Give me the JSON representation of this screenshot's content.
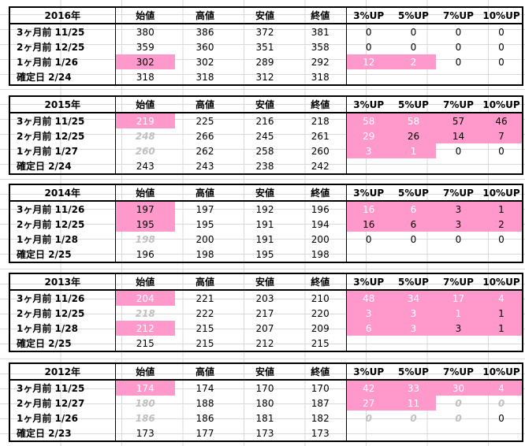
{
  "headers": {
    "cols": [
      "始値",
      "高値",
      "安値",
      "終値",
      "3%UP",
      "5%UP",
      "7%UP",
      "10%UP"
    ]
  },
  "colors": {
    "highlight": "#ff99cc",
    "muted_text": "#c0c0c0"
  },
  "blocks": [
    {
      "year": "2016年",
      "rows": [
        {
          "label": "3ヶ月前 11/25",
          "open": "380",
          "high": "386",
          "low": "372",
          "close": "381",
          "up3": "0",
          "up5": "0",
          "up7": "0",
          "up10": "0"
        },
        {
          "label": "2ヶ月前 12/25",
          "open": "359",
          "high": "360",
          "low": "351",
          "close": "358",
          "up3": "0",
          "up5": "0",
          "up7": "0",
          "up10": "0"
        },
        {
          "label": "1ヶ月前 1/26",
          "open": "302",
          "high": "302",
          "low": "289",
          "close": "292",
          "up3": "12",
          "up5": "2",
          "up7": "0",
          "up10": "0"
        },
        {
          "label": "確定日 2/24",
          "open": "318",
          "high": "318",
          "low": "312",
          "close": "318",
          "up3": "",
          "up5": "",
          "up7": "",
          "up10": ""
        }
      ]
    },
    {
      "year": "2015年",
      "rows": [
        {
          "label": "3ヶ月前 11/25",
          "open": "219",
          "high": "225",
          "low": "216",
          "close": "218",
          "up3": "58",
          "up5": "58",
          "up7": "57",
          "up10": "46"
        },
        {
          "label": "2ヶ月前 12/25",
          "open": "248",
          "high": "266",
          "low": "245",
          "close": "261",
          "up3": "29",
          "up5": "26",
          "up7": "14",
          "up10": "7"
        },
        {
          "label": "1ヶ月前 1/27",
          "open": "260",
          "high": "262",
          "low": "258",
          "close": "260",
          "up3": "3",
          "up5": "1",
          "up7": "0",
          "up10": "0"
        },
        {
          "label": "確定日 2/24",
          "open": "243",
          "high": "243",
          "low": "238",
          "close": "242",
          "up3": "",
          "up5": "",
          "up7": "",
          "up10": ""
        }
      ]
    },
    {
      "year": "2014年",
      "rows": [
        {
          "label": "3ヶ月前 11/26",
          "open": "197",
          "high": "197",
          "low": "192",
          "close": "196",
          "up3": "16",
          "up5": "6",
          "up7": "3",
          "up10": "1"
        },
        {
          "label": "2ヶ月前 12/25",
          "open": "195",
          "high": "195",
          "low": "191",
          "close": "194",
          "up3": "16",
          "up5": "6",
          "up7": "3",
          "up10": "2"
        },
        {
          "label": "1ヶ月前 1/28",
          "open": "198",
          "high": "200",
          "low": "191",
          "close": "200",
          "up3": "0",
          "up5": "0",
          "up7": "0",
          "up10": "0"
        },
        {
          "label": "確定日 2/25",
          "open": "196",
          "high": "198",
          "low": "195",
          "close": "198",
          "up3": "",
          "up5": "",
          "up7": "",
          "up10": ""
        }
      ]
    },
    {
      "year": "2013年",
      "rows": [
        {
          "label": "3ヶ月前 11/26",
          "open": "204",
          "high": "221",
          "low": "203",
          "close": "210",
          "up3": "48",
          "up5": "34",
          "up7": "17",
          "up10": "4"
        },
        {
          "label": "2ヶ月前 12/25",
          "open": "218",
          "high": "222",
          "low": "217",
          "close": "220",
          "up3": "3",
          "up5": "3",
          "up7": "1",
          "up10": "1"
        },
        {
          "label": "1ヶ月前 1/28",
          "open": "212",
          "high": "215",
          "low": "207",
          "close": "209",
          "up3": "6",
          "up5": "3",
          "up7": "3",
          "up10": "1"
        },
        {
          "label": "確定日 2/25",
          "open": "215",
          "high": "215",
          "low": "212",
          "close": "215",
          "up3": "",
          "up5": "",
          "up7": "",
          "up10": ""
        }
      ]
    },
    {
      "year": "2012年",
      "rows": [
        {
          "label": "3ヶ月前 11/25",
          "open": "174",
          "high": "174",
          "low": "170",
          "close": "170",
          "up3": "42",
          "up5": "33",
          "up7": "30",
          "up10": "4"
        },
        {
          "label": "2ヶ月前 12/27",
          "open": "180",
          "high": "188",
          "low": "180",
          "close": "187",
          "up3": "27",
          "up5": "11",
          "up7": "0",
          "up10": "0"
        },
        {
          "label": "1ヶ月前 1/26",
          "open": "186",
          "high": "186",
          "low": "181",
          "close": "182",
          "up3": "0",
          "up5": "0",
          "up7": "0",
          "up10": "0"
        },
        {
          "label": "確定日 2/23",
          "open": "173",
          "high": "177",
          "low": "173",
          "close": "173",
          "up3": "",
          "up5": "",
          "up7": "",
          "up10": ""
        }
      ]
    }
  ]
}
